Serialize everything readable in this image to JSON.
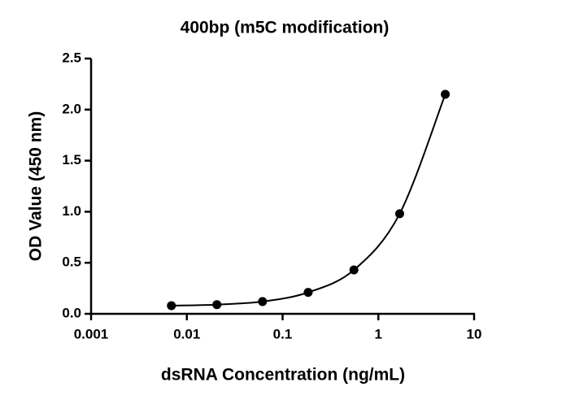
{
  "chart_data": {
    "type": "scatter",
    "title": "400bp (m5C modification)",
    "x_label": "dsRNA Concentration (ng/mL)",
    "y_label": "OD Value (450 nm)",
    "x": [
      0.0069,
      0.0206,
      0.0617,
      0.185,
      0.556,
      1.67,
      5.0
    ],
    "values": [
      0.08,
      0.09,
      0.12,
      0.21,
      0.43,
      0.98,
      2.15
    ],
    "color": "#000000",
    "x_log": true,
    "fit_curve": true,
    "xlim": [
      0.001,
      10
    ],
    "xticks": [
      0.001,
      0.01,
      0.1,
      1,
      10
    ],
    "ylim": [
      0,
      2.5
    ],
    "yticks": [
      {
        "value": 0,
        "label": "0.0"
      },
      {
        "value": 0.5,
        "label": "0.5"
      },
      {
        "value": 1,
        "label": "1.0"
      },
      {
        "value": 1.5,
        "label": "1.5"
      },
      {
        "value": 2,
        "label": "2.0"
      },
      {
        "value": 2.5,
        "label": "2.5"
      }
    ]
  }
}
